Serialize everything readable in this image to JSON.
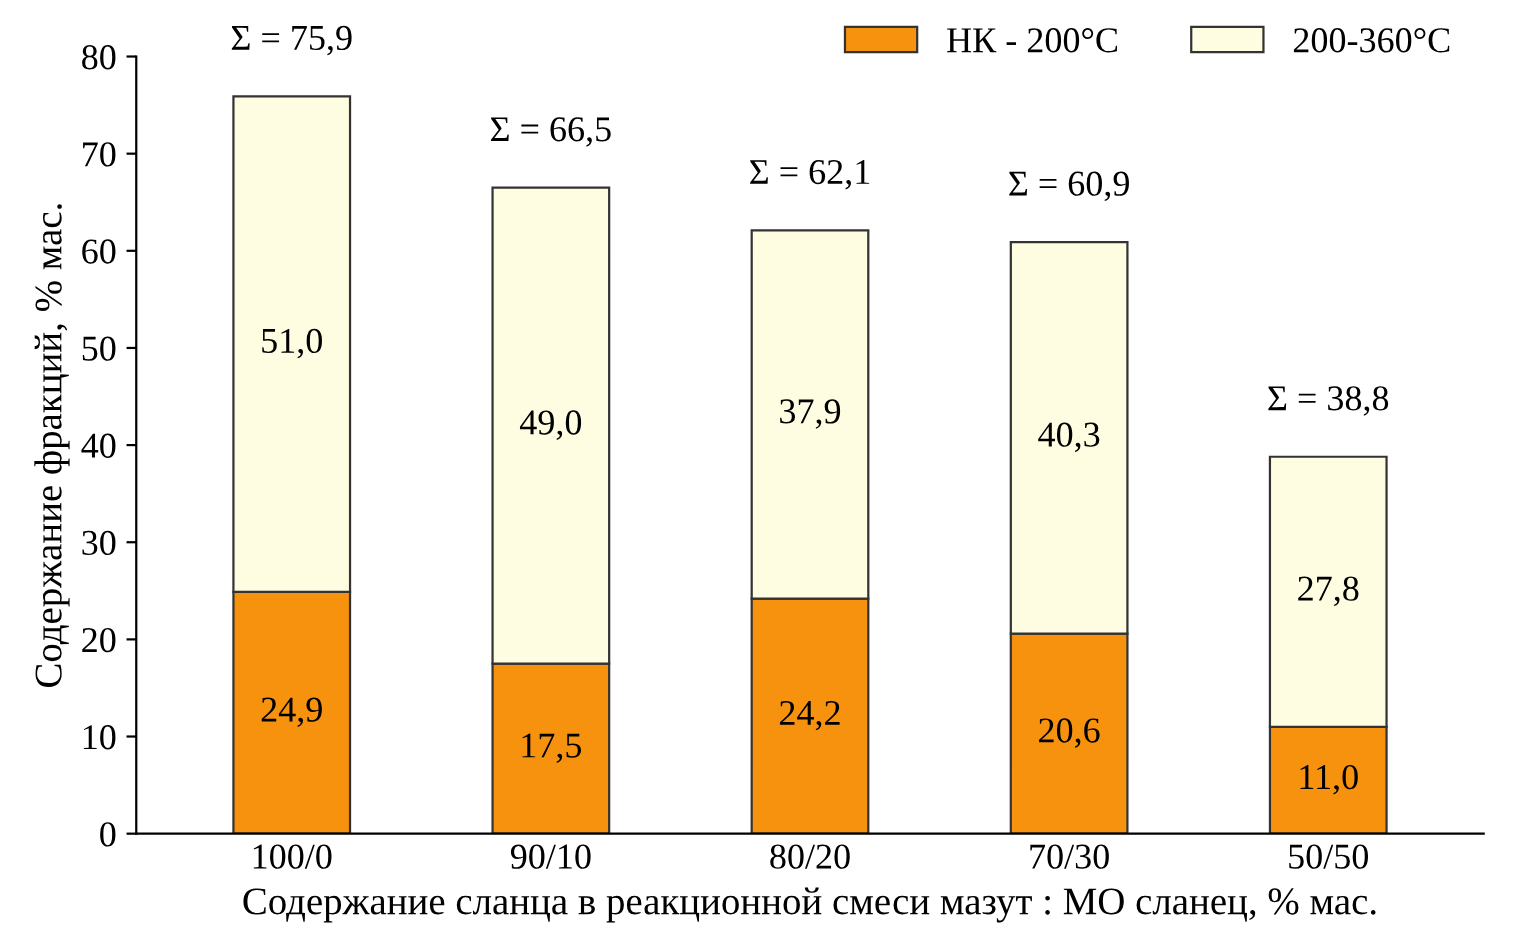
{
  "chart_data": {
    "type": "bar",
    "stacked": true,
    "xlabel": "Содержание сланца в реакционной смеси мазут : МО сланец, % мас.",
    "ylabel": "Содержание фракций, % мас.",
    "categories": [
      "100/0",
      "90/10",
      "80/20",
      "70/30",
      "50/50"
    ],
    "series": [
      {
        "name": "НК - 200°C",
        "color": "#f7920f",
        "values": [
          24.9,
          17.5,
          24.2,
          20.6,
          11.0
        ],
        "value_labels": [
          "24,9",
          "17,5",
          "24,2",
          "20,6",
          "11,0"
        ]
      },
      {
        "name": "200-360°C",
        "color": "#fefde2",
        "values": [
          51.0,
          49.0,
          37.9,
          40.3,
          27.8
        ],
        "value_labels": [
          "51,0",
          "49,0",
          "37,9",
          "40,3",
          "27,8"
        ]
      }
    ],
    "totals": [
      "Σ = 75,9",
      "Σ = 66,5",
      "Σ = 62,1",
      "Σ = 60,9",
      "Σ = 38,8"
    ],
    "ylim": [
      0,
      80
    ],
    "yticks": [
      0,
      10,
      20,
      30,
      40,
      50,
      60,
      70,
      80
    ],
    "grid": false,
    "legend": "top right"
  }
}
